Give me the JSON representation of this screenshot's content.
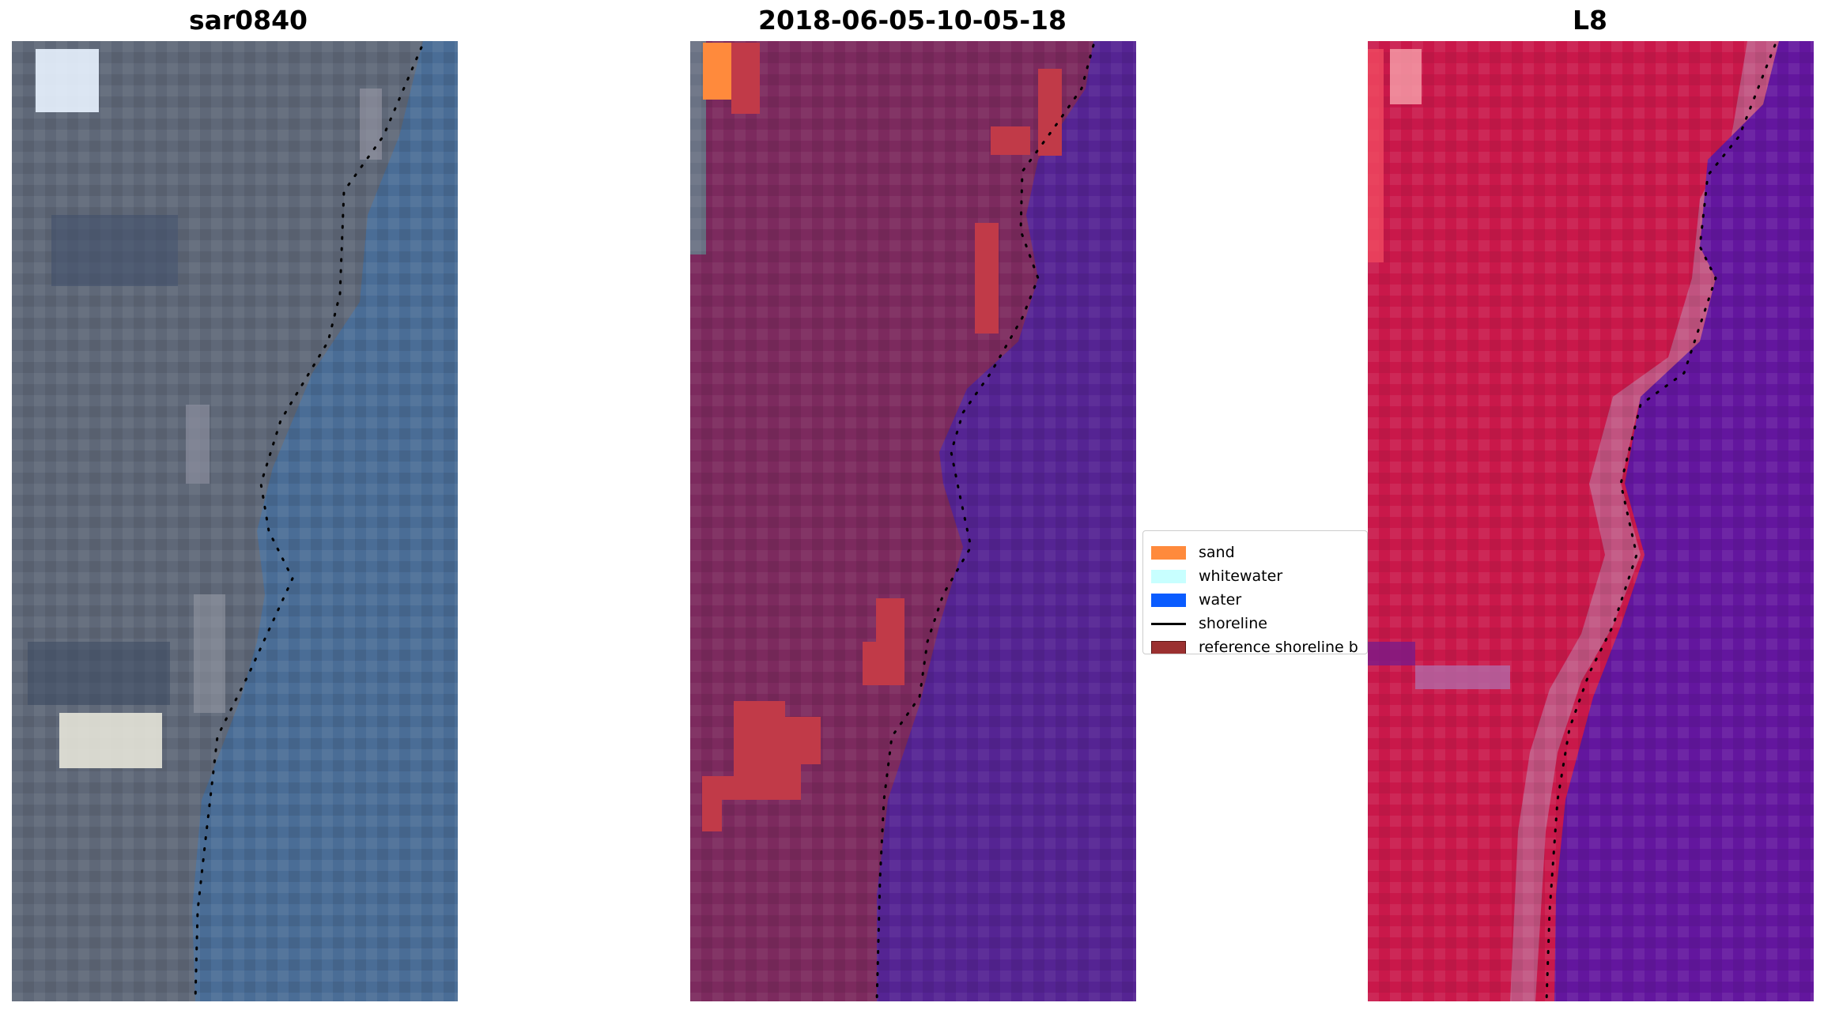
{
  "panels": [
    {
      "id": "rgb",
      "title": "sar0840"
    },
    {
      "id": "classified",
      "title": "2018-06-05-10-05-18"
    },
    {
      "id": "index",
      "title": "L8"
    }
  ],
  "legend": {
    "items": [
      {
        "label": "sand",
        "type": "patch",
        "color": "#ff8a3c"
      },
      {
        "label": "whitewater",
        "type": "patch",
        "color": "#c8ffff"
      },
      {
        "label": "water",
        "type": "patch",
        "color": "#0a5cff"
      },
      {
        "label": "shoreline",
        "type": "line",
        "color": "#000000"
      },
      {
        "label": "reference shoreline b",
        "type": "patch",
        "color": "#9b3030"
      }
    ]
  },
  "colors": {
    "land_rgb": "#5f6878",
    "water_rgb": "#4a6d96",
    "land_classified": "#7c2a5e",
    "water_classified": "#552493",
    "sand_classified": "#c13a48",
    "land_index": "#c9184a",
    "water_index": "#63169e",
    "shoreline": "#000000"
  }
}
